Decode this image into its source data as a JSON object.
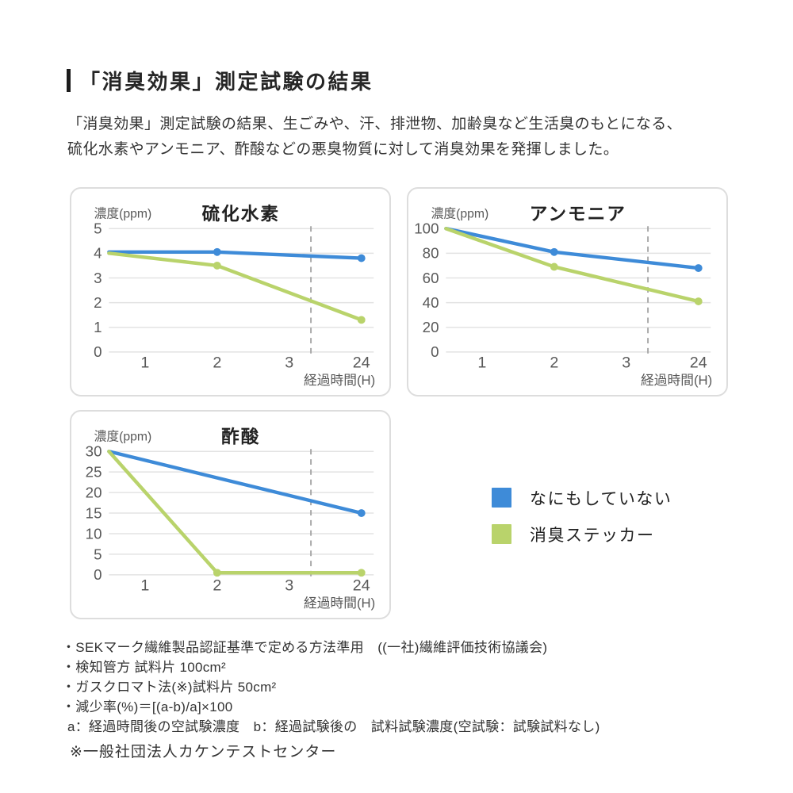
{
  "page": {
    "title": "「消臭効果」測定試験の結果",
    "intro_lines": [
      "「消臭効果」測定試験の結果、生ごみや、汗、排泄物、加齢臭など生活臭のもとになる、",
      "硫化水素やアンモニア、酢酸などの悪臭物質に対して消臭効果を発揮しました。"
    ]
  },
  "colors": {
    "blue": "#3E8BD8",
    "green": "#B9D36B",
    "grid": "#e3e3e3",
    "dashed": "#a9a9a9",
    "axis_text": "#595959",
    "chart_title": "#222222",
    "panel_border": "#dddddd"
  },
  "legend": {
    "items": [
      {
        "label": "なにもしていない",
        "color": "blue"
      },
      {
        "label": "消臭ステッカー",
        "color": "green"
      }
    ]
  },
  "chart_data": [
    {
      "type": "line",
      "title": "硫化水素",
      "ylabel": "濃度(ppm)",
      "xlabel": "経過時間(H)",
      "xticks": [
        "1",
        "2",
        "3",
        "24"
      ],
      "yticks": [
        0,
        1,
        2,
        3,
        4,
        5
      ],
      "ylim": [
        0,
        5
      ],
      "grid": true,
      "dashed_u": 2.8,
      "series": [
        {
          "name": "なにもしていない",
          "color": "blue",
          "points": [
            {
              "x": "0",
              "y": 4.05
            },
            {
              "x": "2",
              "y": 4.05,
              "marker": true
            },
            {
              "x": "24",
              "y": 3.8,
              "marker": true
            }
          ]
        },
        {
          "name": "消臭ステッカー",
          "color": "green",
          "points": [
            {
              "x": "0",
              "y": 4.0
            },
            {
              "x": "2",
              "y": 3.5,
              "marker": true
            },
            {
              "x": "24",
              "y": 1.3,
              "marker": true
            }
          ]
        }
      ]
    },
    {
      "type": "line",
      "title": "アンモニア",
      "ylabel": "濃度(ppm)",
      "xlabel": "経過時間(H)",
      "xticks": [
        "1",
        "2",
        "3",
        "24"
      ],
      "yticks": [
        0,
        20,
        40,
        60,
        80,
        100
      ],
      "ylim": [
        0,
        100
      ],
      "grid": true,
      "dashed_u": 2.8,
      "series": [
        {
          "name": "なにもしていない",
          "color": "blue",
          "points": [
            {
              "x": "0",
              "y": 100
            },
            {
              "x": "2",
              "y": 81,
              "marker": true
            },
            {
              "x": "24",
              "y": 68,
              "marker": true
            }
          ]
        },
        {
          "name": "消臭ステッカー",
          "color": "green",
          "points": [
            {
              "x": "0",
              "y": 100
            },
            {
              "x": "2",
              "y": 69,
              "marker": true
            },
            {
              "x": "24",
              "y": 41,
              "marker": true
            }
          ]
        }
      ]
    },
    {
      "type": "line",
      "title": "酢酸",
      "ylabel": "濃度(ppm)",
      "xlabel": "経過時間(H)",
      "xticks": [
        "1",
        "2",
        "3",
        "24"
      ],
      "yticks": [
        0,
        5,
        10,
        15,
        20,
        25,
        30
      ],
      "ylim": [
        0,
        30
      ],
      "grid": true,
      "dashed_u": 2.8,
      "series": [
        {
          "name": "なにもしていない",
          "color": "blue",
          "points": [
            {
              "x": "0",
              "y": 30
            },
            {
              "x": "24",
              "y": 15,
              "marker": true
            }
          ]
        },
        {
          "name": "消臭ステッカー",
          "color": "green",
          "points": [
            {
              "x": "0",
              "y": 30
            },
            {
              "x": "2",
              "y": 0.5,
              "marker": true
            },
            {
              "x": "24",
              "y": 0.5,
              "marker": true
            }
          ]
        }
      ]
    }
  ],
  "footnotes": {
    "items": [
      "・SEKマーク繊維製品認証基準で定める方法準用　((一社)繊維評価技術協議会)",
      "・検知管方 試料片 100cm²",
      "・ガスクロマト法(※)試料片 50cm²",
      "・減少率(%)＝[(a-b)/a]×100",
      "a：経過時間後の空試験濃度　b：経過試験後の　試料試験濃度(空試験：試験試料なし)"
    ],
    "org_note": "※一般社団法人カケンテストセンター"
  }
}
